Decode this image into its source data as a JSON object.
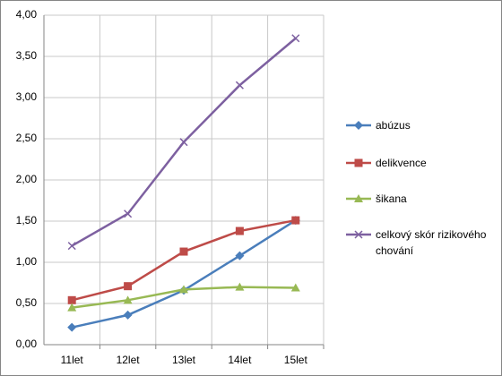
{
  "chart_data": {
    "type": "line",
    "categories": [
      "11let",
      "12let",
      "13let",
      "14let",
      "15let"
    ],
    "series": [
      {
        "name": "abúzus",
        "color": "#4a7ebb",
        "marker": "diamond",
        "values": [
          0.21,
          0.36,
          0.66,
          1.08,
          1.51
        ]
      },
      {
        "name": "delikvence",
        "color": "#be4b48",
        "marker": "square",
        "values": [
          0.54,
          0.71,
          1.13,
          1.38,
          1.51
        ]
      },
      {
        "name": "šikana",
        "color": "#98b954",
        "marker": "triangle",
        "values": [
          0.45,
          0.54,
          0.67,
          0.7,
          0.69
        ]
      },
      {
        "name": "celkový skór rizikového chování",
        "color": "#7d60a0",
        "marker": "x",
        "values": [
          1.2,
          1.59,
          2.46,
          3.15,
          3.72
        ]
      }
    ],
    "ylim": [
      0,
      4
    ],
    "yticks": [
      {
        "value": 0,
        "label": "0,00"
      },
      {
        "value": 0.5,
        "label": "0,50"
      },
      {
        "value": 1,
        "label": "1,00"
      },
      {
        "value": 1.5,
        "label": "1,50"
      },
      {
        "value": 2,
        "label": "2,00"
      },
      {
        "value": 2.5,
        "label": "2,50"
      },
      {
        "value": 3,
        "label": "3,00"
      },
      {
        "value": 3.5,
        "label": "3,50"
      },
      {
        "value": 4,
        "label": "4,00"
      }
    ],
    "grid": true,
    "legend": "right"
  }
}
